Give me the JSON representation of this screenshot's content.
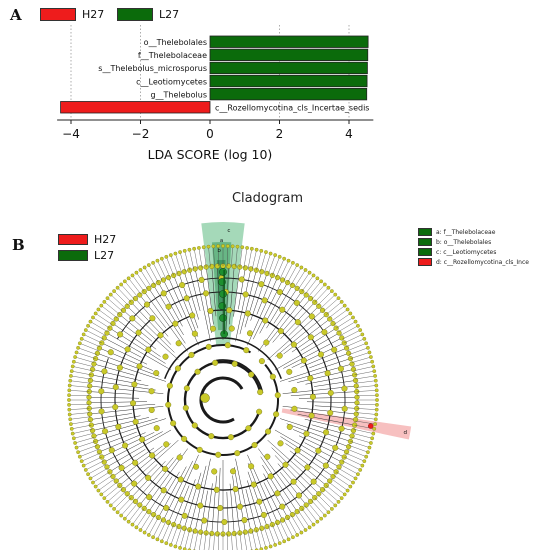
{
  "panel_a_label": "A",
  "panel_b_label": "B",
  "colors": {
    "h27": "#ee1c1c",
    "l27": "#0b6b0b"
  },
  "groups": [
    "H27",
    "L27"
  ],
  "chart_data": [
    {
      "type": "bar",
      "orientation": "horizontal",
      "title": "",
      "xlabel": "LDA SCORE (log 10)",
      "ylabel": "",
      "xlim": [
        -4.4,
        4.7
      ],
      "ticks": [
        -4,
        -2,
        0,
        2,
        4
      ],
      "tick_labels": [
        "−4",
        "−2",
        "0",
        "2",
        "4"
      ],
      "legend": [
        "H27",
        "L27"
      ],
      "legend_position": "top-left",
      "grid": "dashed vertical",
      "bars": [
        {
          "label": "o__Thelebolales",
          "value": 4.55,
          "group": "L27"
        },
        {
          "label": "f__Thelebolaceae",
          "value": 4.54,
          "group": "L27"
        },
        {
          "label": "s__Thelebolus_microsporus",
          "value": 4.53,
          "group": "L27"
        },
        {
          "label": "c__Leotiomycetes",
          "value": 4.52,
          "group": "L27"
        },
        {
          "label": "g__Thelebolus",
          "value": 4.51,
          "group": "L27"
        },
        {
          "label": "c__Rozellomycotina_cls_Incertae_sedis",
          "value": -4.3,
          "group": "H27"
        }
      ]
    },
    {
      "type": "cladogram",
      "title": "Cladogram",
      "legend": [
        "H27",
        "L27"
      ],
      "side_legend": [
        {
          "text": "a: f__Thelebolaceae",
          "group": "L27"
        },
        {
          "text": "b: o__Thelebolales",
          "group": "L27"
        },
        {
          "text": "c: c__Leotiomycetes",
          "group": "L27"
        },
        {
          "text": "d: c__Rozellomycotina_cls_Ince",
          "group": "H27"
        }
      ],
      "clade_labels": [
        "a",
        "b",
        "c",
        "d"
      ]
    }
  ]
}
